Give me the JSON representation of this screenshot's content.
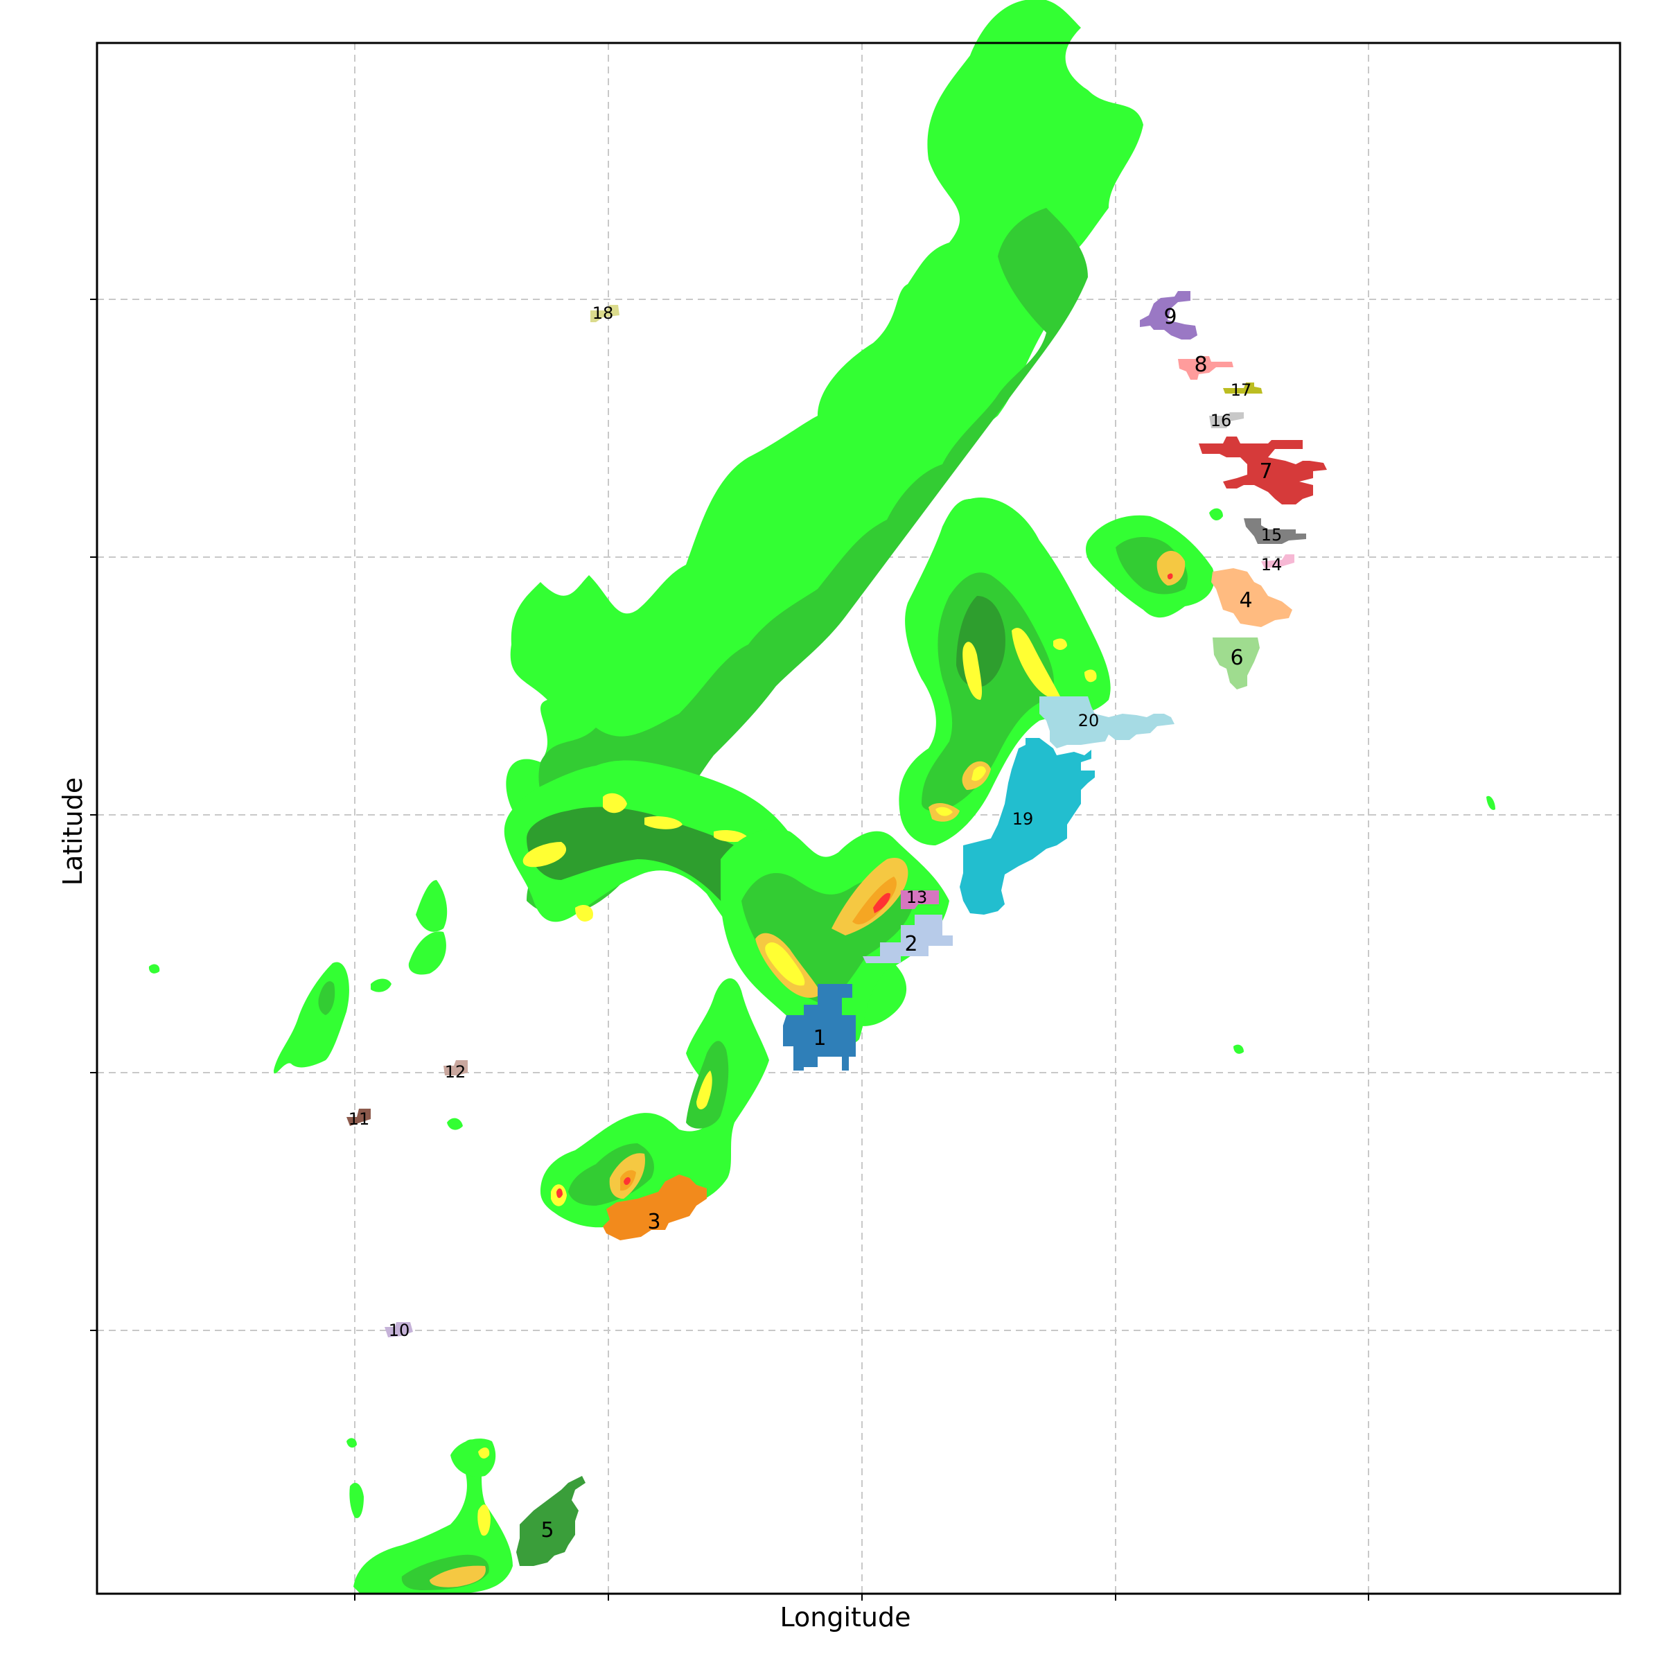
{
  "chart_data": {
    "type": "map",
    "xlabel": "Longitude",
    "ylabel": "Latitude",
    "grid": true,
    "grid_style": "dashed",
    "colors": {
      "echo_light": "#33ff33",
      "echo_mid": "#33cc33",
      "echo_dark": "#2e9e2e",
      "echo_yellow": "#ffff33",
      "echo_gold": "#f5c842",
      "echo_orange": "#f5a623",
      "echo_red": "#ff3333"
    },
    "cells": [
      {
        "id": "1",
        "color": "#2f7fb8"
      },
      {
        "id": "2",
        "color": "#b7cbe9"
      },
      {
        "id": "3",
        "color": "#f28a1c"
      },
      {
        "id": "4",
        "color": "#ffbb80"
      },
      {
        "id": "5",
        "color": "#3a9e3a"
      },
      {
        "id": "6",
        "color": "#9fdc8f"
      },
      {
        "id": "7",
        "color": "#d63a3a"
      },
      {
        "id": "8",
        "color": "#ff9c9c"
      },
      {
        "id": "9",
        "color": "#9a78c4"
      },
      {
        "id": "10",
        "color": "#c5b2d8"
      },
      {
        "id": "11",
        "color": "#8c5a4c"
      },
      {
        "id": "12",
        "color": "#c9a79e"
      },
      {
        "id": "13",
        "color": "#d676c0"
      },
      {
        "id": "14",
        "color": "#f6b8d4"
      },
      {
        "id": "15",
        "color": "#808080"
      },
      {
        "id": "16",
        "color": "#c8c8c8"
      },
      {
        "id": "17",
        "color": "#bcbd22"
      },
      {
        "id": "18",
        "color": "#dbdb8d"
      },
      {
        "id": "19",
        "color": "#22becf"
      },
      {
        "id": "20",
        "color": "#a6dbe4"
      }
    ]
  }
}
